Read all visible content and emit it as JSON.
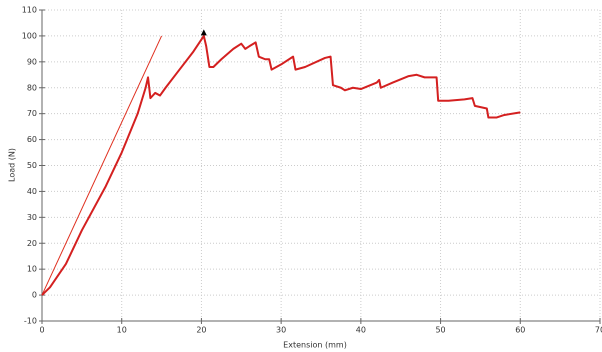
{
  "chart_data": {
    "type": "line",
    "x_label": "Extension (mm)",
    "y_label": "Load (N)",
    "xlim": [
      0,
      70
    ],
    "ylim": [
      -10,
      110
    ],
    "xticks": [
      0,
      10,
      20,
      30,
      40,
      50,
      60,
      70
    ],
    "yticks": [
      -10,
      0,
      10,
      20,
      30,
      40,
      50,
      60,
      70,
      80,
      90,
      100,
      110
    ],
    "grid": true,
    "series": [
      {
        "color": "#e03020",
        "width": 1,
        "x": [
          0,
          15
        ],
        "values": [
          0,
          100
        ]
      },
      {
        "color": "#d42020",
        "width": 2,
        "x": [
          0,
          1,
          3,
          5,
          8,
          10,
          12,
          13,
          13.3,
          13.6,
          14.2,
          14.8,
          15.5,
          17,
          19,
          20.3,
          20.6,
          20.8,
          21,
          21.5,
          22.5,
          24,
          25,
          25.5,
          26,
          26.8,
          27.2,
          28,
          28.5,
          28.8,
          30,
          31.5,
          31.8,
          33,
          35.5,
          36.2,
          36.5,
          37.5,
          38,
          39,
          40,
          42,
          42.3,
          42.5,
          44,
          46,
          47,
          48,
          49.5,
          49.7,
          51,
          53,
          54,
          54.3,
          55.8,
          56,
          57,
          58,
          60
        ],
        "values": [
          0,
          3,
          12,
          25,
          42,
          55,
          70,
          80,
          84,
          76,
          78,
          77,
          80,
          86,
          94,
          100,
          96,
          92,
          88,
          88,
          91,
          95,
          97,
          95,
          96,
          97.5,
          92,
          91,
          91,
          87,
          89,
          92,
          87,
          88,
          91.5,
          92,
          81,
          80,
          79,
          80,
          79.5,
          82,
          83,
          80,
          82,
          84.5,
          85,
          84,
          84,
          75,
          75,
          75.5,
          76,
          73,
          72,
          68.5,
          68.5,
          69.5,
          70.5
        ]
      }
    ],
    "peak": {
      "x": 20.3,
      "value": 101,
      "color": "#000000"
    }
  }
}
